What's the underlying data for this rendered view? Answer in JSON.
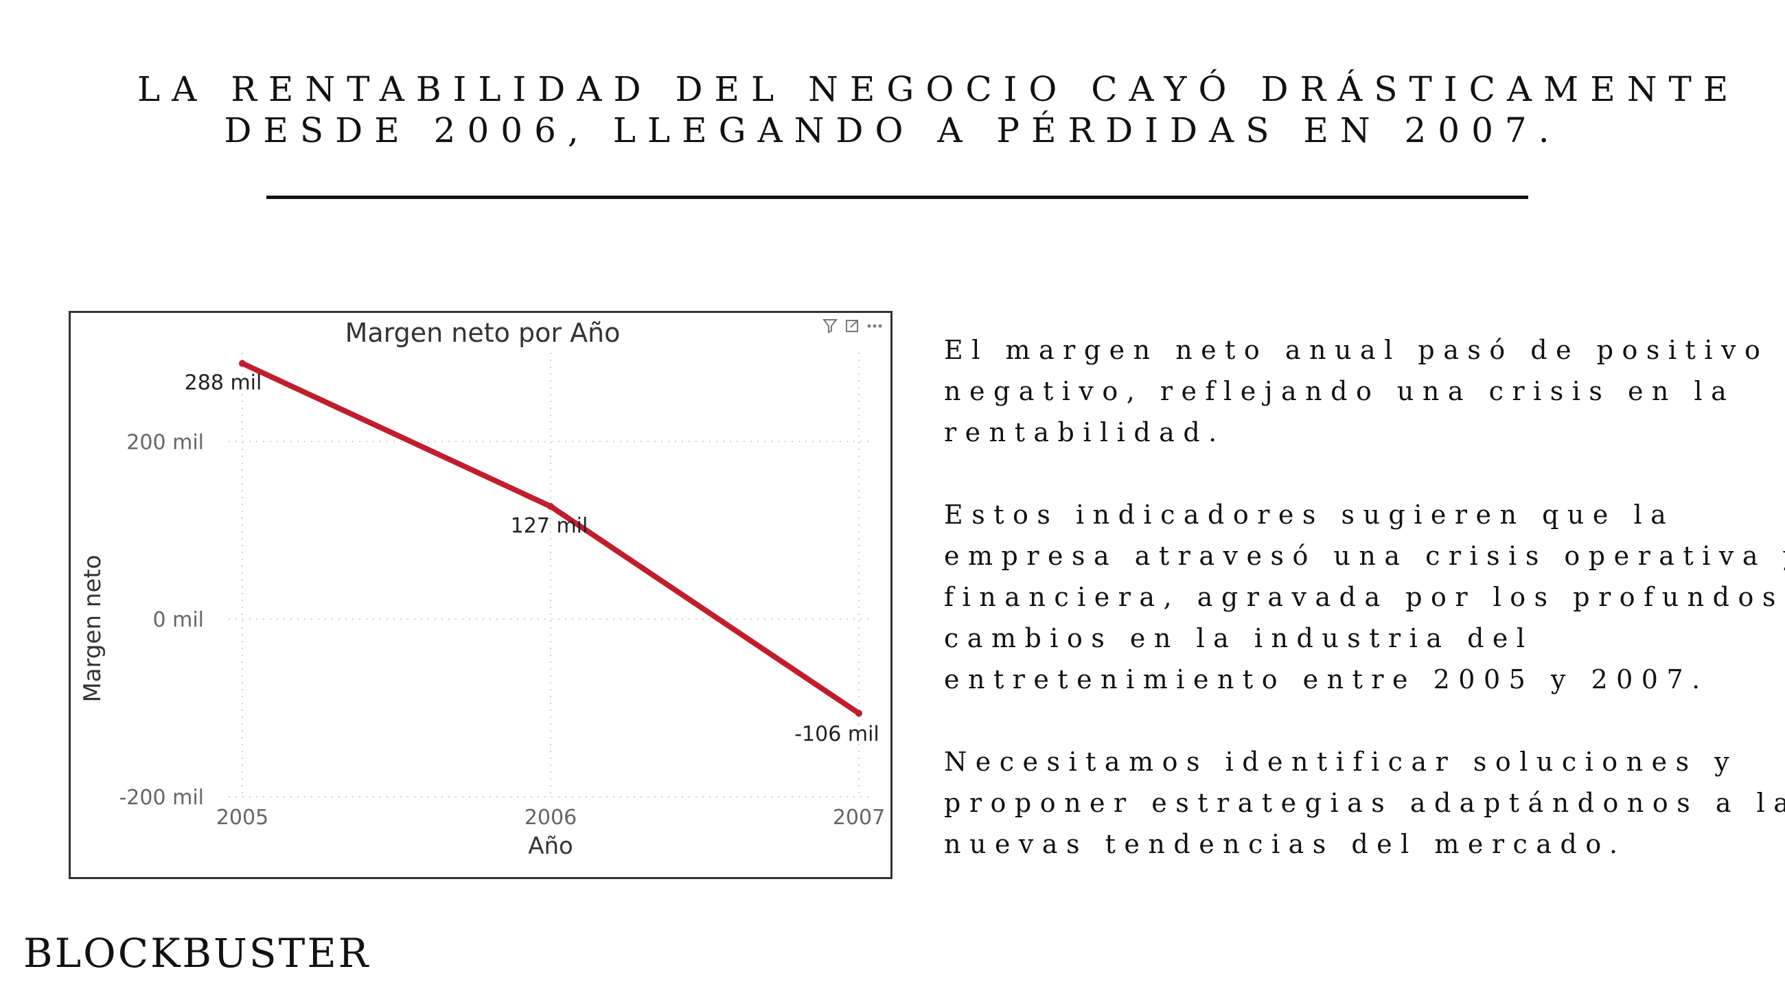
{
  "headline": {
    "line1": "LA RENTABILIDAD DEL NEGOCIO CAYÓ DRÁSTICAMENTE",
    "line2": "DESDE 2006, LLEGANDO A PÉRDIDAS EN 2007."
  },
  "paragraphs": [
    {
      "lines": [
        "El margen neto anual pasó de positivo a",
        "negativo, reflejando una crisis en la",
        "rentabilidad."
      ]
    },
    {
      "lines": [
        "Estos indicadores sugieren que la",
        "empresa atravesó una crisis operativa y",
        "financiera, agravada por los profundos",
        "cambios en la industria del",
        "entretenimiento entre 2005 y 2007."
      ]
    },
    {
      "lines": [
        "Necesitamos identificar soluciones y",
        "proponer estrategias adaptándonos a las",
        "nuevas tendencias del mercado."
      ]
    }
  ],
  "brand": "BLOCKBUSTER",
  "chart_icons": {
    "filter": "filter-icon",
    "focus": "focus-mode-icon",
    "more": "more-options-icon"
  },
  "chart_data": {
    "type": "line",
    "title": "Margen neto por Año",
    "xlabel": "Año",
    "ylabel": "Margen neto",
    "x": [
      "2005",
      "2006",
      "2007"
    ],
    "series": [
      {
        "values": [
          288000,
          127000,
          -106000
        ],
        "labels": [
          "288 mil",
          "127 mil",
          "-106 mil"
        ],
        "color": "#BF1E2E"
      }
    ],
    "ylim": [
      -200000,
      300000
    ],
    "yticks": [
      {
        "value": -200000,
        "label": "-200 mil"
      },
      {
        "value": 0,
        "label": "0 mil"
      },
      {
        "value": 200000,
        "label": "200 mil"
      }
    ],
    "grid": true,
    "legend": "none"
  }
}
